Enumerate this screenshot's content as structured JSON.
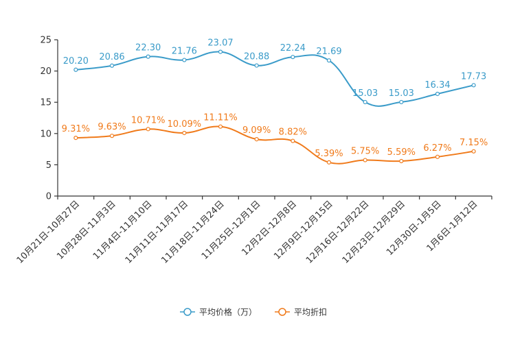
{
  "chart_data": {
    "type": "line",
    "title": "",
    "xlabel": "",
    "ylabel": "",
    "ylim": [
      0,
      25
    ],
    "yticks": [
      0,
      5,
      10,
      15,
      20,
      25
    ],
    "grid": false,
    "legend_position": "bottom-center",
    "categories": [
      "10月21日-10月27日",
      "10月28日-11月3日",
      "11月4日-11月10日",
      "11月11日-11月17日",
      "11月18日-11月24日",
      "11月25日-12月1日",
      "12月2日-12月8日",
      "12月9日-12月15日",
      "12月16日-12月22日",
      "12月23日-12月29日",
      "12月30日-1月5日",
      "1月6日-1月12日"
    ],
    "series": [
      {
        "name": "平均价格（万）",
        "color": "#3a9bc9",
        "values": [
          20.2,
          20.86,
          22.3,
          21.76,
          23.07,
          20.88,
          22.24,
          21.69,
          15.03,
          15.03,
          16.34,
          17.73
        ],
        "labels": [
          "20.20",
          "20.86",
          "22.30",
          "21.76",
          "23.07",
          "20.88",
          "22.24",
          "21.69",
          "15.03",
          "15.03",
          "16.34",
          "17.73"
        ]
      },
      {
        "name": "平均折扣",
        "color": "#f07a1a",
        "values": [
          9.31,
          9.63,
          10.71,
          10.09,
          11.11,
          9.09,
          8.82,
          5.39,
          5.75,
          5.59,
          6.27,
          7.15
        ],
        "labels": [
          "9.31%",
          "9.63%",
          "10.71%",
          "10.09%",
          "11.11%",
          "9.09%",
          "8.82%",
          "5.39%",
          "5.75%",
          "5.59%",
          "6.27%",
          "7.15%"
        ]
      }
    ]
  }
}
